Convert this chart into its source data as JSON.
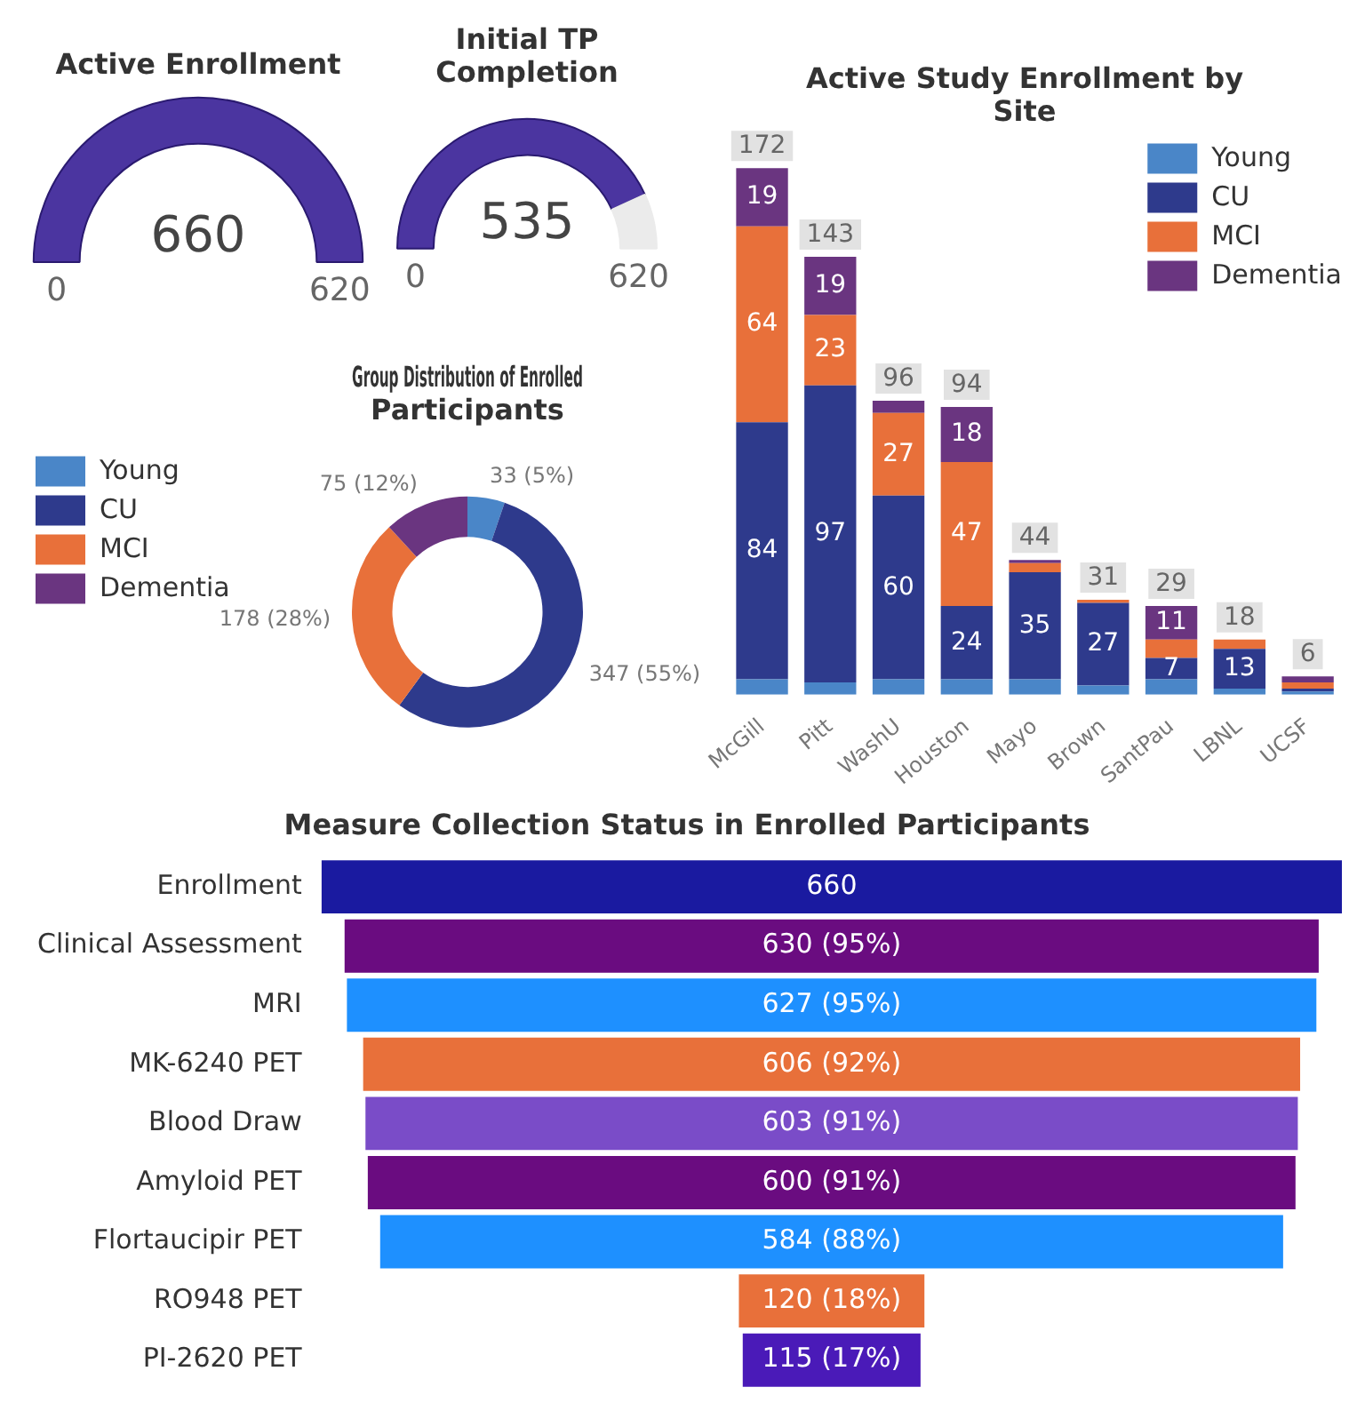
{
  "chart_data": [
    {
      "type": "other",
      "title": "Active Enrollment",
      "values": [
        660
      ],
      "data_labels": true,
      "annotations": [
        "0",
        "620"
      ],
      "color": "#4b35a0"
    },
    {
      "type": "other",
      "title": "Initial TP Completion",
      "values": [
        535
      ],
      "data_labels": true,
      "annotations": [
        "0",
        "620"
      ],
      "color": "#4b35a0"
    },
    {
      "type": "bar",
      "title": "Active Study Enrollment by Site",
      "stacked": true,
      "legend": "top right",
      "categories": [
        "McGill",
        "Pitt",
        "WashU",
        "Houston",
        "Mayo",
        "Brown",
        "SantPau",
        "LBNL",
        "UCSF"
      ],
      "series": [
        {
          "name": "Young",
          "color": "#4a86c8",
          "values": [
            5,
            4,
            5,
            5,
            5,
            3,
            5,
            2,
            1
          ],
          "value_labels": [
            null,
            null,
            null,
            null,
            null,
            null,
            null,
            null,
            null
          ]
        },
        {
          "name": "CU",
          "color": "#2e3a8c",
          "values": [
            84,
            97,
            60,
            24,
            35,
            27,
            7,
            13,
            1
          ],
          "value_labels": [
            "84",
            "97",
            "60",
            "24",
            "35",
            "27",
            "7",
            "13",
            null
          ]
        },
        {
          "name": "MCI",
          "color": "#e8703a",
          "values": [
            64,
            23,
            27,
            47,
            3,
            1,
            6,
            3,
            2
          ],
          "value_labels": [
            "64",
            "23",
            "27",
            "47",
            null,
            null,
            null,
            null,
            null
          ]
        },
        {
          "name": "Dementia",
          "color": "#6a3580",
          "values": [
            19,
            19,
            4,
            18,
            1,
            0,
            11,
            0,
            2
          ],
          "value_labels": [
            "19",
            "19",
            null,
            "18",
            null,
            null,
            "11",
            null,
            null
          ]
        }
      ],
      "totals": [
        "172",
        "143",
        "96",
        "94",
        "44",
        "31",
        "29",
        "18",
        "6"
      ]
    },
    {
      "type": "donut",
      "title": "Group Distribution of Enrolled Participants",
      "legend": "left",
      "categories": [
        "Young",
        "CU",
        "MCI",
        "Dementia"
      ],
      "values": [
        33,
        347,
        178,
        75
      ],
      "colors": [
        "#4a86c8",
        "#2e3a8c",
        "#e8703a",
        "#6a3580"
      ],
      "value_labels": [
        "33 (5%)",
        "347 (55%)",
        "178 (28%)",
        "75 (12%)"
      ]
    },
    {
      "type": "other",
      "title": "Measure Collection Status in Enrolled Participants",
      "categories": [
        "Enrollment",
        "Clinical Assessment",
        "MRI",
        "MK-6240 PET",
        "Blood Draw",
        "Amyloid PET",
        "Flortaucipir PET",
        "RO948 PET",
        "PI-2620 PET"
      ],
      "values": [
        660,
        630,
        627,
        606,
        603,
        600,
        584,
        120,
        115
      ],
      "colors": [
        "#1a1aa0",
        "#6a0c80",
        "#1e90ff",
        "#e8703a",
        "#7a4cc8",
        "#6a0c80",
        "#1e90ff",
        "#e8703a",
        "#4a1ab8"
      ],
      "value_labels": [
        "660",
        "630 (95%)",
        "627 (95%)",
        "606 (92%)",
        "603 (91%)",
        "600 (91%)",
        "584 (88%)",
        "120 (18%)",
        "115 (17%)"
      ]
    }
  ]
}
